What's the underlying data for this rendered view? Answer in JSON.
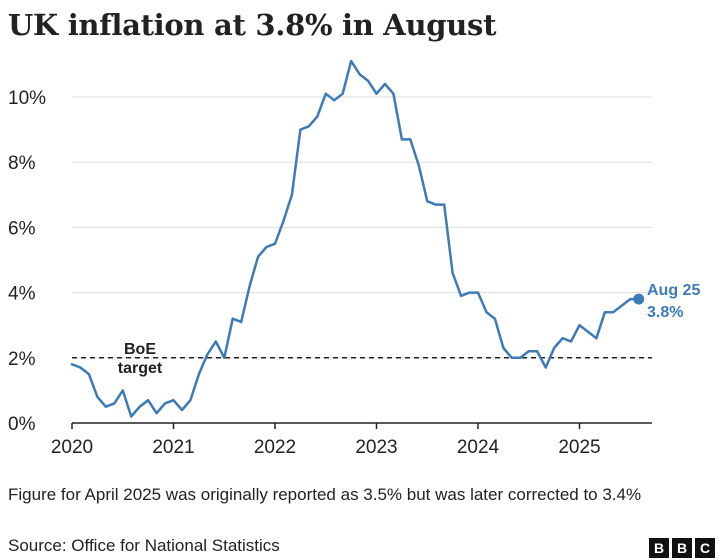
{
  "chart_data": {
    "type": "line",
    "title": "UK inflation at 3.8% in August",
    "xlabel": "",
    "ylabel": "",
    "x_start": "2020-01",
    "x_step": "month",
    "xlim": [
      2020.0,
      2025.75
    ],
    "ylim": [
      0,
      11.2
    ],
    "x_ticks": [
      2020,
      2021,
      2022,
      2023,
      2024,
      2025
    ],
    "x_tick_labels": [
      "2020",
      "2021",
      "2022",
      "2023",
      "2024",
      "2025"
    ],
    "y_ticks": [
      0,
      2,
      4,
      6,
      8,
      10
    ],
    "y_tick_labels": [
      "0%",
      "2%",
      "4%",
      "6%",
      "8%",
      "10%"
    ],
    "grid": "horizontal",
    "series": [
      {
        "values": [
          1.8,
          1.7,
          1.5,
          0.8,
          0.5,
          0.6,
          1.0,
          0.2,
          0.5,
          0.7,
          0.3,
          0.6,
          0.7,
          0.4,
          0.7,
          1.5,
          2.1,
          2.5,
          2.0,
          3.2,
          3.1,
          4.2,
          5.1,
          5.4,
          5.5,
          6.2,
          7.0,
          9.0,
          9.1,
          9.4,
          10.1,
          9.9,
          10.1,
          11.1,
          10.7,
          10.5,
          10.1,
          10.4,
          10.1,
          8.7,
          8.7,
          7.9,
          6.8,
          6.7,
          6.7,
          4.6,
          3.9,
          4.0,
          4.0,
          3.4,
          3.2,
          2.3,
          2.0,
          2.0,
          2.2,
          2.2,
          1.7,
          2.3,
          2.6,
          2.5,
          3.0,
          2.8,
          2.6,
          3.4,
          3.4,
          3.6,
          3.8,
          3.8
        ],
        "color": "#3D7AB8"
      }
    ],
    "reference_line": {
      "value": 2,
      "label_line1": "BoE",
      "label_line2": "target",
      "style": "dashed"
    },
    "end_label": {
      "line1": "Aug 25",
      "line2": "3.8%"
    }
  },
  "note": "Figure for April 2025 was originally reported as 3.5% but was later corrected to 3.4%",
  "source": "Source: Office for National Statistics",
  "logo": [
    "B",
    "B",
    "C"
  ]
}
